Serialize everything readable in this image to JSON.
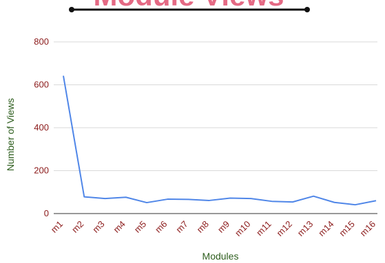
{
  "colors": {
    "line": "#4f86e8",
    "tick_label": "#8b1a1a",
    "axis_label": "#2e5e1e",
    "grid": "#d9d9d9",
    "axis": "#333333",
    "title": "#e46a84",
    "title_rule": "#111111"
  },
  "chart_data": {
    "type": "line",
    "title": "Module Views",
    "xlabel": "Modules",
    "ylabel": "Number of Views",
    "ylim": [
      0,
      800
    ],
    "yticks": [
      0,
      200,
      400,
      600,
      800
    ],
    "grid": true,
    "legend": "none",
    "categories": [
      "m1",
      "m2",
      "m3",
      "m4",
      "m5",
      "m6",
      "m7",
      "m8",
      "m9",
      "m10",
      "m11",
      "m12",
      "m13",
      "m14",
      "m15",
      "m16"
    ],
    "series": [
      {
        "values": [
          642,
          78,
          70,
          76,
          51,
          67,
          66,
          61,
          72,
          70,
          57,
          54,
          81,
          52,
          41,
          60
        ]
      }
    ]
  }
}
